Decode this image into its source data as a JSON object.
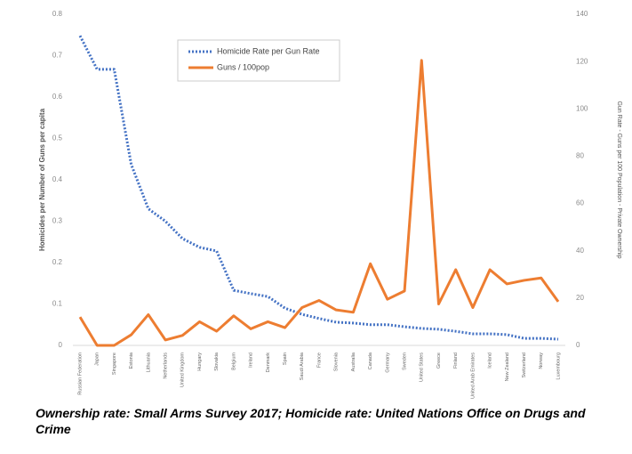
{
  "chart_data": {
    "type": "line",
    "categories": [
      "Russian Federation",
      "Japan",
      "Singapore",
      "Estonia",
      "Lithuania",
      "Netherlands",
      "United Kingdom",
      "Hungary",
      "Slovakia",
      "Belgium",
      "Ireland",
      "Denmark",
      "Spain",
      "Saudi Arabia",
      "France",
      "Slovenia",
      "Australia",
      "Canada",
      "Germany",
      "Sweden",
      "United States",
      "Greece",
      "Finland",
      "United Arab Emirates",
      "Iceland",
      "New Zealand",
      "Switzerland",
      "Norway",
      "Luxembourg"
    ],
    "series": [
      {
        "name": "Homicide Rate per Gun Rate",
        "color": "#4472c4",
        "style": "dotted",
        "values": [
          0.748,
          0.667,
          0.667,
          0.437,
          0.33,
          0.3,
          0.258,
          0.237,
          0.228,
          0.133,
          0.125,
          0.118,
          0.09,
          0.075,
          0.065,
          0.056,
          0.054,
          0.05,
          0.05,
          0.045,
          0.041,
          0.039,
          0.034,
          0.028,
          0.028,
          0.026,
          0.017,
          0.017,
          0.015
        ]
      },
      {
        "name": "Guns / 100pop",
        "color": "#ed7d31",
        "style": "solid",
        "axis": "y2",
        "values": [
          12,
          0,
          0,
          4.5,
          13,
          2.3,
          4.2,
          10,
          6,
          12.5,
          7,
          10,
          7.5,
          16,
          19,
          15,
          14,
          34.5,
          19.5,
          23,
          120.5,
          17.5,
          32,
          16,
          32,
          26,
          27.5,
          28.5,
          18.5
        ]
      }
    ],
    "ylabel": "Homicides per Number of Guns per capita",
    "y2label": "Gun Rate - Guns per 100 Population - Private Ownership",
    "ylim": [
      0,
      0.8
    ],
    "yticks": [
      0,
      0.1,
      0.2,
      0.3,
      0.4,
      0.5,
      0.6,
      0.7,
      0.8
    ],
    "y2lim": [
      0,
      140
    ],
    "y2ticks": [
      0,
      20,
      40,
      60,
      80,
      100,
      120,
      140
    ],
    "grid": false,
    "caption": "Ownership rate: Small Arms Survey 2017; Homicide rate: United Nations Office on Drugs and Crime"
  }
}
